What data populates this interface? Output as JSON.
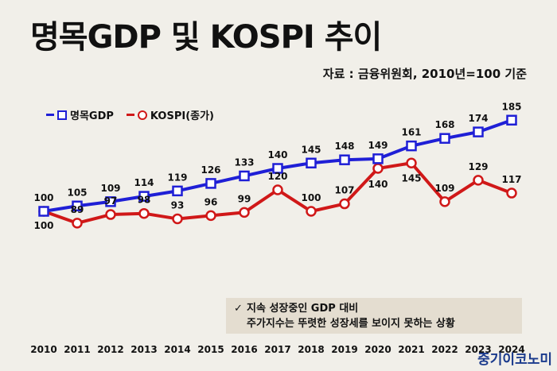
{
  "title": "명목GDP 및 KOSPI 추이",
  "source": "자료 : 금융위원회, 2010년=100 기준",
  "callout": {
    "check": "✓",
    "line1": "지속 성장중인 GDP 대비",
    "line2": "주가지수는 뚜렷한 성장세를 보이지 못하는 상황"
  },
  "brand": "중기이코노미",
  "colors": {
    "gdp": "#1f1fd6",
    "kospi": "#d01818"
  },
  "chart_data": {
    "type": "line",
    "categories": [
      "2010",
      "2011",
      "2012",
      "2013",
      "2014",
      "2015",
      "2016",
      "2017",
      "2018",
      "2019",
      "2020",
      "2021",
      "2022",
      "2023",
      "2024"
    ],
    "series": [
      {
        "name": "명목GDP",
        "values": [
          100,
          105,
          109,
          114,
          119,
          126,
          133,
          140,
          145,
          148,
          149,
          161,
          168,
          174,
          185
        ]
      },
      {
        "name": "KOSPI(종가)",
        "values": [
          100,
          89,
          97,
          98,
          93,
          96,
          99,
          120,
          100,
          107,
          140,
          145,
          109,
          129,
          117
        ]
      }
    ],
    "legend": "top-left",
    "grid": false
  }
}
